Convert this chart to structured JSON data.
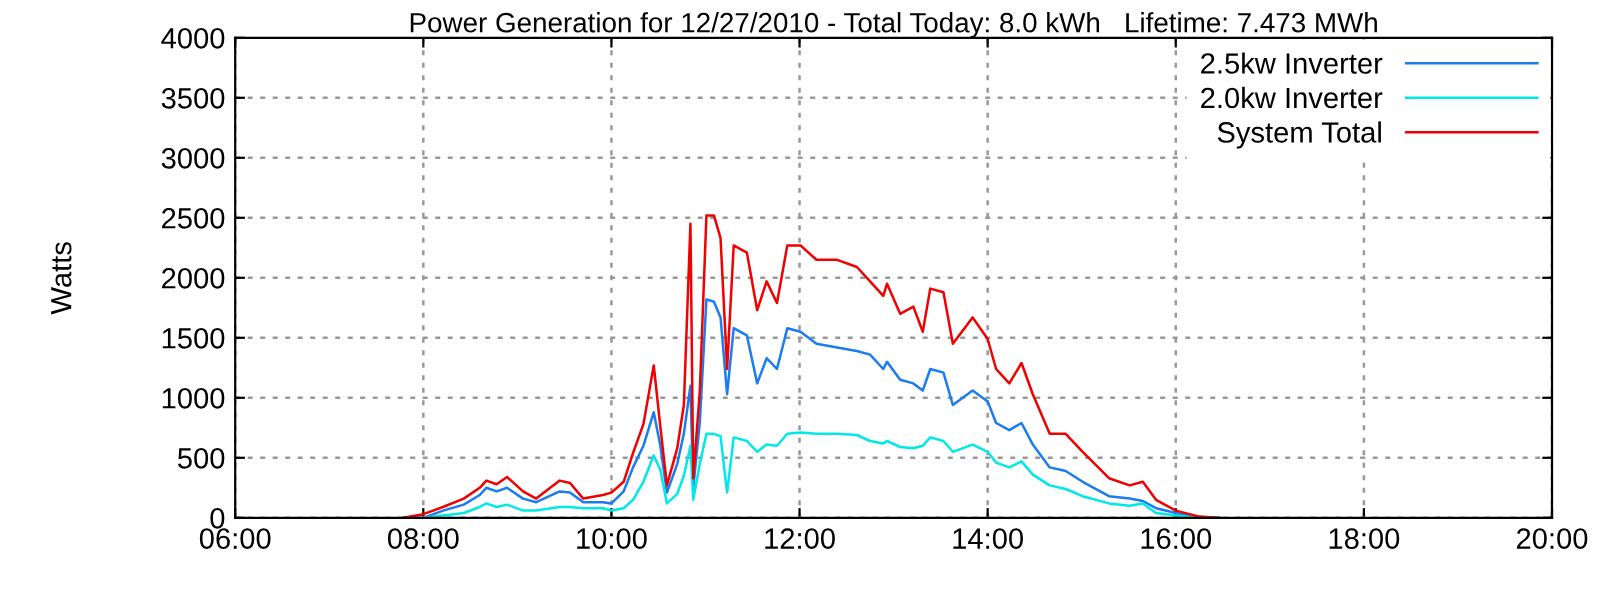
{
  "chart_data": {
    "type": "line",
    "title": "Power Generation for 12/27/2010 - Total Today: 8.0 kWh   Lifetime: 7.473 MWh",
    "ylabel": "Watts",
    "x": [
      7.79,
      8.0,
      8.21,
      8.43,
      8.6,
      8.67,
      8.78,
      8.89,
      9.06,
      9.2,
      9.45,
      9.56,
      9.7,
      9.91,
      10.0,
      10.13,
      10.23,
      10.34,
      10.45,
      10.52,
      10.59,
      10.7,
      10.77,
      10.84,
      10.87,
      10.94,
      11.01,
      11.09,
      11.16,
      11.23,
      11.3,
      11.44,
      11.55,
      11.65,
      11.76,
      11.87,
      12.01,
      12.18,
      12.4,
      12.61,
      12.75,
      12.89,
      12.93,
      13.07,
      13.21,
      13.31,
      13.39,
      13.53,
      13.63,
      13.84,
      14.0,
      14.09,
      14.23,
      14.36,
      14.48,
      14.66,
      14.83,
      15.01,
      15.29,
      15.51,
      15.65,
      15.79,
      16.0,
      16.25,
      16.46
    ],
    "series": [
      {
        "name": "2.5kw Inverter",
        "color": "#1a7cf0",
        "values": [
          0,
          0,
          60,
          110,
          190,
          250,
          220,
          250,
          160,
          130,
          220,
          210,
          130,
          130,
          120,
          220,
          420,
          600,
          880,
          600,
          210,
          450,
          700,
          1100,
          250,
          800,
          1820,
          1800,
          1670,
          1030,
          1580,
          1520,
          1120,
          1330,
          1240,
          1580,
          1550,
          1450,
          1420,
          1390,
          1360,
          1240,
          1300,
          1150,
          1120,
          1060,
          1240,
          1210,
          940,
          1060,
          970,
          790,
          730,
          790,
          610,
          420,
          390,
          300,
          180,
          160,
          140,
          80,
          40,
          0,
          0
        ]
      },
      {
        "name": "2.0kw Inverter",
        "color": "#00e8e8",
        "values": [
          0,
          0,
          20,
          40,
          90,
          120,
          90,
          110,
          60,
          60,
          90,
          90,
          80,
          80,
          60,
          80,
          150,
          300,
          520,
          400,
          120,
          200,
          350,
          600,
          150,
          450,
          700,
          700,
          680,
          210,
          670,
          640,
          550,
          610,
          600,
          700,
          710,
          700,
          700,
          690,
          640,
          620,
          640,
          590,
          580,
          600,
          670,
          640,
          550,
          610,
          550,
          460,
          420,
          470,
          360,
          270,
          240,
          180,
          120,
          100,
          120,
          40,
          20,
          0,
          0
        ]
      },
      {
        "name": "System Total",
        "color": "#f00000",
        "values": [
          0,
          30,
          90,
          160,
          250,
          310,
          280,
          340,
          220,
          160,
          310,
          290,
          160,
          190,
          210,
          300,
          540,
          780,
          1270,
          760,
          270,
          580,
          940,
          2450,
          330,
          1060,
          2520,
          2520,
          2330,
          1240,
          2270,
          2210,
          1730,
          1970,
          1790,
          2270,
          2270,
          2150,
          2150,
          2090,
          1970,
          1850,
          1950,
          1700,
          1760,
          1550,
          1910,
          1880,
          1450,
          1670,
          1490,
          1240,
          1120,
          1290,
          1030,
          700,
          700,
          550,
          330,
          270,
          300,
          150,
          60,
          10,
          0
        ]
      }
    ],
    "xlim": [
      6,
      20
    ],
    "xticks": [
      {
        "value": 6,
        "label": "06:00"
      },
      {
        "value": 8,
        "label": "08:00"
      },
      {
        "value": 10,
        "label": "10:00"
      },
      {
        "value": 12,
        "label": "12:00"
      },
      {
        "value": 14,
        "label": "14:00"
      },
      {
        "value": 16,
        "label": "16:00"
      },
      {
        "value": 18,
        "label": "18:00"
      },
      {
        "value": 20,
        "label": "20:00"
      }
    ],
    "ylim": [
      0,
      4000
    ],
    "yticks": [
      0,
      500,
      1000,
      1500,
      2000,
      2500,
      3000,
      3500,
      4000
    ],
    "grid": true,
    "legend": "top right",
    "line_style": "solid",
    "marker": "none"
  }
}
